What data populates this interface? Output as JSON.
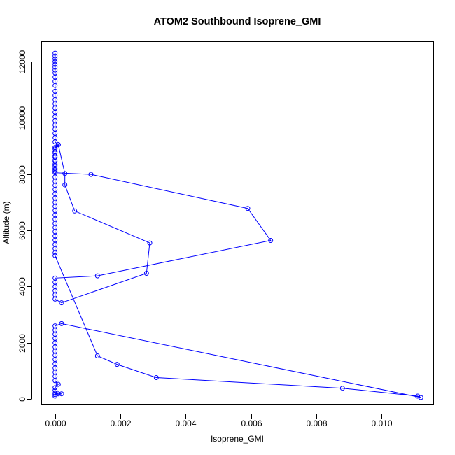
{
  "chart_data": {
    "type": "line",
    "title": "ATOM2 Southbound Isoprene_GMI",
    "xlabel": "Isoprene_GMI",
    "ylabel": "Altitude (m)",
    "xlim": [
      -0.0004,
      0.0116
    ],
    "ylim": [
      -200,
      12700
    ],
    "xticks": [
      0.0,
      0.002,
      0.004,
      0.006,
      0.008,
      0.01
    ],
    "xtick_labels": [
      "0.000",
      "0.002",
      "0.004",
      "0.006",
      "0.008",
      "0.010"
    ],
    "yticks": [
      0,
      2000,
      4000,
      6000,
      8000,
      10000,
      12000
    ],
    "ytick_labels": [
      "0",
      "2000",
      "4000",
      "6000",
      "8000",
      "10000",
      "12000"
    ],
    "grid": false,
    "legend": "none",
    "color": "#0000ff",
    "series": [
      {
        "values": [
          [
            0.0,
            12300
          ],
          [
            0.0,
            12200
          ],
          [
            0.0,
            12100
          ],
          [
            0.0,
            12000
          ],
          [
            0.0,
            11900
          ],
          [
            0.0,
            11800
          ],
          [
            0.0,
            11700
          ],
          [
            0.0,
            11600
          ],
          [
            0.0,
            11450
          ],
          [
            0.0,
            11300
          ],
          [
            0.0,
            11150
          ],
          [
            0.0,
            10950
          ],
          [
            0.0,
            10800
          ],
          [
            0.0,
            10650
          ],
          [
            0.0,
            10500
          ],
          [
            0.0,
            10350
          ],
          [
            0.0,
            10200
          ],
          [
            0.0,
            10050
          ],
          [
            0.0,
            9900
          ],
          [
            0.0,
            9750
          ],
          [
            0.0,
            9600
          ],
          [
            0.0,
            9450
          ],
          [
            0.0,
            9300
          ],
          [
            0.0,
            9150
          ],
          [
            0.0001,
            9050
          ],
          [
            0.0,
            8900
          ],
          [
            0.0,
            8750
          ],
          [
            0.0,
            8600
          ],
          [
            0.0,
            8450
          ],
          [
            0.0,
            8300
          ],
          [
            0.0,
            8150
          ],
          [
            0.0,
            8050
          ],
          [
            0.0011,
            7990
          ],
          [
            0.0059,
            6780
          ],
          [
            0.0066,
            5640
          ],
          [
            0.0013,
            4380
          ],
          [
            0.0,
            4300
          ],
          [
            0.0,
            4150
          ],
          [
            0.0,
            4000
          ],
          [
            0.0,
            3850
          ],
          [
            0.0,
            3700
          ],
          [
            0.0,
            3550
          ],
          [
            0.0002,
            3420
          ],
          [
            0.0028,
            4470
          ],
          [
            0.0029,
            5550
          ],
          [
            0.0006,
            6690
          ],
          [
            0.0003,
            7620
          ],
          [
            0.0003,
            8020
          ],
          [
            0.0001,
            9050
          ],
          [
            0.0,
            8950
          ],
          [
            0.0,
            8800
          ],
          [
            0.0,
            8650
          ],
          [
            0.0,
            8500
          ],
          [
            0.0,
            8350
          ],
          [
            0.0,
            8200
          ],
          [
            0.0,
            8100
          ],
          [
            0.0,
            7900
          ],
          [
            0.0,
            7750
          ],
          [
            0.0,
            7600
          ],
          [
            0.0,
            7450
          ],
          [
            0.0,
            7300
          ],
          [
            0.0,
            7150
          ],
          [
            0.0,
            7000
          ],
          [
            0.0,
            6850
          ],
          [
            0.0,
            6700
          ],
          [
            0.0,
            6550
          ],
          [
            0.0,
            6400
          ],
          [
            0.0,
            6250
          ],
          [
            0.0,
            6100
          ],
          [
            0.0,
            5950
          ],
          [
            0.0,
            5800
          ],
          [
            0.0,
            5650
          ],
          [
            0.0,
            5500
          ],
          [
            0.0,
            5350
          ],
          [
            0.0,
            5200
          ],
          [
            0.0,
            5100
          ],
          [
            0.0013,
            1530
          ],
          [
            0.0019,
            1230
          ],
          [
            0.0031,
            760
          ],
          [
            0.0088,
            380
          ],
          [
            0.0111,
            100
          ],
          [
            0.0112,
            50
          ],
          [
            0.0002,
            2680
          ],
          [
            0.0,
            2600
          ],
          [
            0.0,
            2450
          ],
          [
            0.0,
            2300
          ],
          [
            0.0,
            2150
          ],
          [
            0.0,
            2000
          ],
          [
            0.0,
            1850
          ],
          [
            0.0,
            1700
          ],
          [
            0.0,
            1550
          ],
          [
            0.0,
            1400
          ],
          [
            0.0,
            1250
          ],
          [
            0.0,
            1100
          ],
          [
            0.0,
            950
          ],
          [
            0.0,
            800
          ],
          [
            0.0,
            650
          ],
          [
            0.0001,
            520
          ],
          [
            0.0,
            400
          ],
          [
            0.0,
            300
          ],
          [
            0.0,
            200
          ],
          [
            0.0001,
            180
          ],
          [
            0.0002,
            180
          ],
          [
            0.0,
            150
          ],
          [
            0.0,
            100
          ]
        ]
      }
    ]
  }
}
